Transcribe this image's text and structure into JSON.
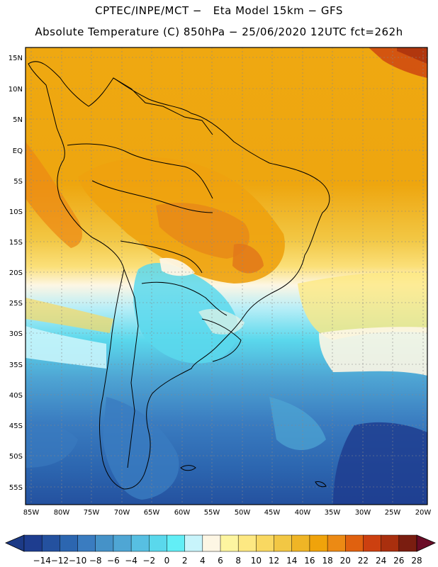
{
  "header": {
    "title_line1": "CPTEC/INPE/MCT −   Eta Model 15km − GFS",
    "title_line2": "Absolute Temperature (C) 850hPa − 25/06/2020 12UTC fct=262h"
  },
  "axes": {
    "lat_labels": [
      "15N",
      "10N",
      "5N",
      "EQ",
      "5S",
      "10S",
      "15S",
      "20S",
      "25S",
      "30S",
      "35S",
      "40S",
      "45S",
      "50S",
      "55S"
    ],
    "lon_labels": [
      "85W",
      "80W",
      "75W",
      "70W",
      "65W",
      "60W",
      "55W",
      "50W",
      "45W",
      "40W",
      "35W",
      "30W",
      "25W",
      "20W"
    ]
  },
  "colorbar": {
    "labels": [
      "-14",
      "-12",
      "-10",
      "-8",
      "-6",
      "-4",
      "-2",
      "0",
      "2",
      "4",
      "6",
      "8",
      "10",
      "12",
      "14",
      "16",
      "18",
      "20",
      "22",
      "24",
      "26",
      "28"
    ],
    "colors": [
      "#1e3d8f",
      "#24519f",
      "#2c66b0",
      "#3a7cc0",
      "#4592c8",
      "#4fa6d4",
      "#57bfe2",
      "#5ad8ec",
      "#62eef6",
      "#c8f4fb",
      "#fdf6e4",
      "#fdf5a0",
      "#fde882",
      "#f9d861",
      "#f2c744",
      "#efb526",
      "#f0a30b",
      "#ec8a14",
      "#e0610f",
      "#cc4010",
      "#a92f0e",
      "#7a1d10"
    ],
    "low_color": "#1c3a86",
    "high_color": "#6a0c26"
  }
}
